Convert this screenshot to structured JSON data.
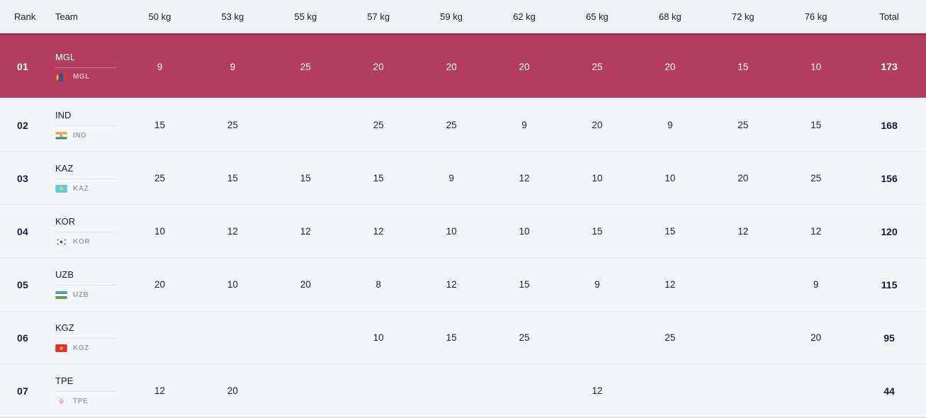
{
  "table": {
    "columns": [
      "Rank",
      "Team",
      "50 kg",
      "53 kg",
      "55 kg",
      "57 kg",
      "59 kg",
      "62 kg",
      "65 kg",
      "68 kg",
      "72 kg",
      "76 kg",
      "Total"
    ],
    "rows": [
      {
        "rank": "01",
        "team": "MGL",
        "flag_icon": "flag-mgl-icon",
        "flag_label": "MGL",
        "values": [
          "9",
          "9",
          "25",
          "20",
          "20",
          "20",
          "25",
          "20",
          "15",
          "10"
        ],
        "total": "173",
        "highlighted": true
      },
      {
        "rank": "02",
        "team": "IND",
        "flag_icon": "flag-ind-icon",
        "flag_label": "IND",
        "values": [
          "15",
          "25",
          "",
          "25",
          "25",
          "9",
          "20",
          "9",
          "25",
          "15"
        ],
        "total": "168",
        "highlighted": false
      },
      {
        "rank": "03",
        "team": "KAZ",
        "flag_icon": "flag-kaz-icon",
        "flag_label": "KAZ",
        "values": [
          "25",
          "15",
          "15",
          "15",
          "9",
          "12",
          "10",
          "10",
          "20",
          "25"
        ],
        "total": "156",
        "highlighted": false
      },
      {
        "rank": "04",
        "team": "KOR",
        "flag_icon": "flag-kor-icon",
        "flag_label": "KOR",
        "values": [
          "10",
          "12",
          "12",
          "12",
          "10",
          "10",
          "15",
          "15",
          "12",
          "12"
        ],
        "total": "120",
        "highlighted": false
      },
      {
        "rank": "05",
        "team": "UZB",
        "flag_icon": "flag-uzb-icon",
        "flag_label": "UZB",
        "values": [
          "20",
          "10",
          "20",
          "8",
          "12",
          "15",
          "9",
          "12",
          "",
          "9"
        ],
        "total": "115",
        "highlighted": false
      },
      {
        "rank": "06",
        "team": "KGZ",
        "flag_icon": "flag-kgz-icon",
        "flag_label": "KGZ",
        "values": [
          "",
          "",
          "",
          "10",
          "15",
          "25",
          "",
          "25",
          "",
          "20"
        ],
        "total": "95",
        "highlighted": false
      },
      {
        "rank": "07",
        "team": "TPE",
        "flag_icon": "flag-tpe-icon",
        "flag_label": "TPE",
        "values": [
          "12",
          "20",
          "",
          "",
          "",
          "",
          "12",
          "",
          "",
          ""
        ],
        "total": "44",
        "highlighted": false
      }
    ]
  },
  "colors": {
    "highlight_row": "#b23d60",
    "highlight_border": "#9c2a4f",
    "header_bg": "#f1f2f6",
    "row_bg": "#f4f5f9",
    "text": "#181b3c",
    "muted_text": "#9aa0b0"
  }
}
